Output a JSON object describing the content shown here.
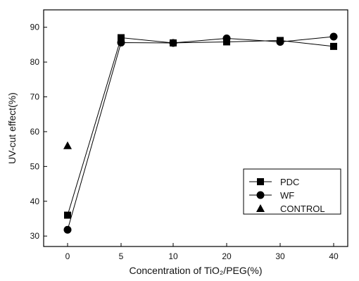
{
  "chart_data": {
    "type": "line",
    "xlabel": "Concentration of TiO₂/PEG(%)",
    "ylabel": "UV-cut effect(%)",
    "categories": [
      "0",
      "5",
      "10",
      "20",
      "30",
      "40"
    ],
    "yticks": [
      30,
      40,
      50,
      60,
      70,
      80,
      90
    ],
    "ylim": [
      27,
      95
    ],
    "grid": false,
    "legend_position": "bottom-right",
    "series": [
      {
        "name": "PDC",
        "marker": "square",
        "values": [
          36,
          87,
          85.5,
          85.8,
          86.2,
          84.5
        ]
      },
      {
        "name": "WF",
        "marker": "circle",
        "values": [
          31.8,
          85.6,
          85.5,
          86.8,
          85.8,
          87.3
        ]
      },
      {
        "name": "CONTROL",
        "marker": "triangle",
        "points": [
          {
            "x": "0",
            "y": 56
          }
        ]
      }
    ]
  }
}
